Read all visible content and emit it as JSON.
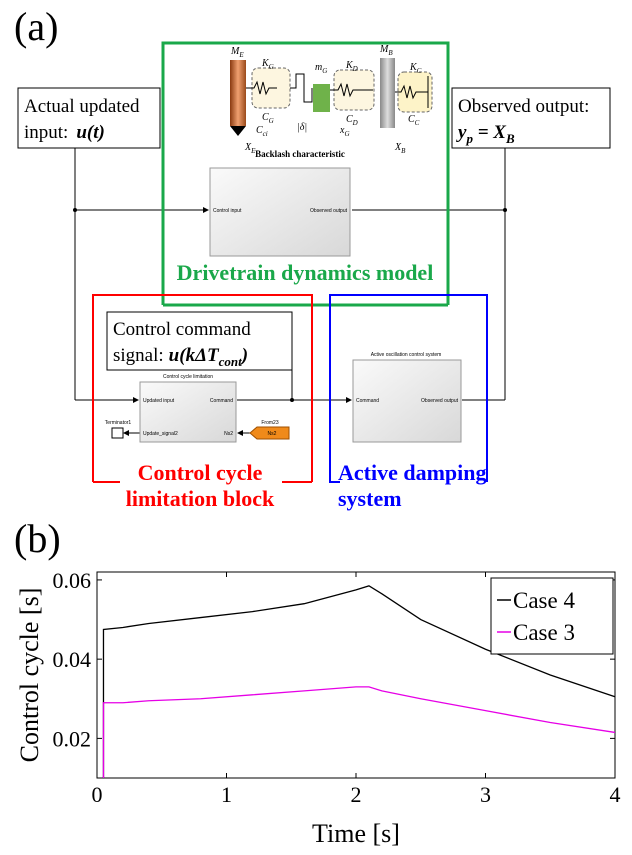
{
  "panel_a": {
    "label": "(a)",
    "input_box": {
      "line1": "Actual updated",
      "line2": "input:",
      "formula": "u(t)"
    },
    "output_box": {
      "line1": "Observed output:",
      "y": "y",
      "p": "p",
      "eq": " = X",
      "B": "B"
    },
    "drivetrain": {
      "title": "Drivetrain dynamics model",
      "backlash": "Backlash characteristic",
      "symbols": [
        "M",
        "K",
        "C",
        "m",
        "K",
        "C",
        "M",
        "K",
        "C",
        "X",
        "x",
        "X",
        "|δ|",
        "C"
      ],
      "subs": [
        "E",
        "G",
        "G",
        "G",
        "D",
        "D",
        "B",
        "C",
        "C",
        "E",
        "G",
        "B",
        "",
        "ci"
      ],
      "block_in": "Control input",
      "block_out": "Observed output"
    },
    "command_box": {
      "line1": "Control command",
      "line2": "signal:",
      "formula": "u(kΔT",
      "sub": "cont",
      "close": ")"
    },
    "limitation": {
      "title1": "Control cycle",
      "title2": "limitation block",
      "block_title": "Control cycle limitation",
      "port_in1": "Updated input",
      "port_in2": "Update_signal2",
      "port_out1": "Command",
      "port_out2": "Ns2",
      "terminator": "Terminator1",
      "from_block": "From23",
      "from_tag": "Ns2"
    },
    "damping": {
      "title1": "Active damping",
      "title2": "system",
      "block_title": "Active oscillation control system",
      "port_in": "Command",
      "port_out": "Observed output"
    }
  },
  "chart_data": {
    "type": "line",
    "panel_label": "(b)",
    "x_label": "Time [s]",
    "y_label": "Control cycle [s]",
    "x": [
      0.05,
      0.05,
      0.2,
      0.4,
      0.8,
      1.2,
      1.6,
      2.0,
      2.1,
      2.2,
      2.5,
      3.0,
      3.5,
      4.0
    ],
    "series": [
      {
        "name": "Case 4",
        "color": "#000000",
        "values": [
          0.01,
          0.0475,
          0.048,
          0.049,
          0.0505,
          0.052,
          0.054,
          0.0575,
          0.0585,
          0.0565,
          0.05,
          0.0425,
          0.036,
          0.0305
        ]
      },
      {
        "name": "Case 3",
        "color": "#e600e6",
        "values": [
          0.01,
          0.029,
          0.029,
          0.0295,
          0.03,
          0.031,
          0.032,
          0.033,
          0.033,
          0.032,
          0.03,
          0.027,
          0.024,
          0.0215
        ]
      }
    ],
    "xlim": [
      0,
      4
    ],
    "ylim": [
      0.01,
      0.062
    ],
    "xticks": [
      0,
      1,
      2,
      3,
      4
    ],
    "yticks": [
      0.02,
      0.04,
      0.06
    ],
    "legend": "top-right"
  }
}
